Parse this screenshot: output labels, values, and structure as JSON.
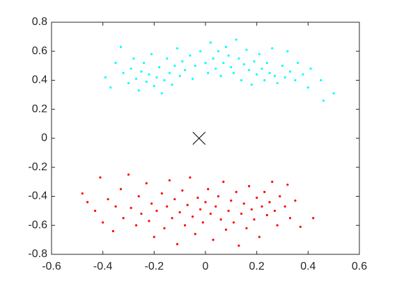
{
  "chart_data": {
    "type": "scatter",
    "xlim": [
      -0.6,
      0.6
    ],
    "ylim": [
      -0.8,
      0.8
    ],
    "xticks": [
      -0.6,
      -0.4,
      -0.2,
      0,
      0.2,
      0.4,
      0.6
    ],
    "yticks": [
      -0.8,
      -0.6,
      -0.4,
      -0.2,
      0,
      0.2,
      0.4,
      0.6,
      0.8
    ],
    "grid": false,
    "series": [
      {
        "color": "#00ffff",
        "marker": "dot",
        "x": [
          -0.39,
          -0.37,
          -0.35,
          -0.33,
          -0.32,
          -0.3,
          -0.29,
          -0.28,
          -0.27,
          -0.26,
          -0.25,
          -0.24,
          -0.23,
          -0.22,
          -0.21,
          -0.2,
          -0.19,
          -0.18,
          -0.17,
          -0.16,
          -0.15,
          -0.14,
          -0.13,
          -0.12,
          -0.11,
          -0.1,
          -0.09,
          -0.08,
          -0.06,
          -0.05,
          -0.04,
          -0.02,
          0,
          0.01,
          0.02,
          0.03,
          0.04,
          0.05,
          0.06,
          0.07,
          0.08,
          0.09,
          0.1,
          0.11,
          0.12,
          0.13,
          0.14,
          0.15,
          0.16,
          0.17,
          0.18,
          0.19,
          0.2,
          0.21,
          0.22,
          0.23,
          0.24,
          0.25,
          0.26,
          0.27,
          0.28,
          0.3,
          0.31,
          0.32,
          0.33,
          0.35,
          0.36,
          0.38,
          0.4,
          0.41,
          0.45,
          0.46,
          0.5
        ],
        "values": [
          0.42,
          0.35,
          0.52,
          0.63,
          0.45,
          0.38,
          0.48,
          0.55,
          0.41,
          0.33,
          0.46,
          0.52,
          0.39,
          0.44,
          0.58,
          0.36,
          0.42,
          0.49,
          0.31,
          0.4,
          0.55,
          0.45,
          0.37,
          0.5,
          0.62,
          0.43,
          0.53,
          0.47,
          0.57,
          0.41,
          0.5,
          0.6,
          0.52,
          0.45,
          0.66,
          0.55,
          0.48,
          0.6,
          0.43,
          0.52,
          0.63,
          0.57,
          0.49,
          0.45,
          0.68,
          0.55,
          0.4,
          0.51,
          0.61,
          0.47,
          0.37,
          0.53,
          0.44,
          0.58,
          0.48,
          0.4,
          0.52,
          0.45,
          0.62,
          0.43,
          0.38,
          0.5,
          0.42,
          0.6,
          0.46,
          0.4,
          0.52,
          0.44,
          0.35,
          0.48,
          0.4,
          0.26,
          0.31
        ]
      },
      {
        "color": "#ff0000",
        "marker": "dot",
        "x": [
          -0.48,
          -0.46,
          -0.43,
          -0.41,
          -0.4,
          -0.38,
          -0.36,
          -0.35,
          -0.33,
          -0.32,
          -0.3,
          -0.29,
          -0.27,
          -0.26,
          -0.25,
          -0.23,
          -0.22,
          -0.21,
          -0.2,
          -0.19,
          -0.17,
          -0.16,
          -0.15,
          -0.14,
          -0.13,
          -0.12,
          -0.11,
          -0.1,
          -0.09,
          -0.08,
          -0.07,
          -0.06,
          -0.05,
          -0.04,
          -0.03,
          -0.02,
          -0.01,
          0,
          0.01,
          0.02,
          0.03,
          0.04,
          0.05,
          0.06,
          0.07,
          0.08,
          0.09,
          0.1,
          0.11,
          0.12,
          0.13,
          0.14,
          0.15,
          0.16,
          0.17,
          0.18,
          0.19,
          0.2,
          0.21,
          0.22,
          0.23,
          0.24,
          0.25,
          0.26,
          0.27,
          0.28,
          0.29,
          0.31,
          0.32,
          0.33,
          0.35,
          0.37,
          0.42
        ],
        "values": [
          -0.38,
          -0.44,
          -0.5,
          -0.27,
          -0.58,
          -0.42,
          -0.64,
          -0.47,
          -0.35,
          -0.55,
          -0.25,
          -0.48,
          -0.6,
          -0.4,
          -0.52,
          -0.31,
          -0.57,
          -0.45,
          -0.68,
          -0.5,
          -0.38,
          -0.62,
          -0.47,
          -0.29,
          -0.55,
          -0.42,
          -0.73,
          -0.51,
          -0.36,
          -0.6,
          -0.46,
          -0.27,
          -0.54,
          -0.66,
          -0.41,
          -0.49,
          -0.58,
          -0.44,
          -0.35,
          -0.52,
          -0.7,
          -0.47,
          -0.4,
          -0.56,
          -0.3,
          -0.63,
          -0.5,
          -0.43,
          -0.58,
          -0.37,
          -0.74,
          -0.52,
          -0.45,
          -0.62,
          -0.33,
          -0.49,
          -0.56,
          -0.41,
          -0.68,
          -0.47,
          -0.37,
          -0.53,
          -0.44,
          -0.3,
          -0.5,
          -0.6,
          -0.4,
          -0.47,
          -0.32,
          -0.55,
          -0.43,
          -0.61,
          -0.55
        ]
      },
      {
        "color": "#000000",
        "marker": "x",
        "x": [
          -0.025
        ],
        "values": [
          0
        ]
      }
    ]
  }
}
